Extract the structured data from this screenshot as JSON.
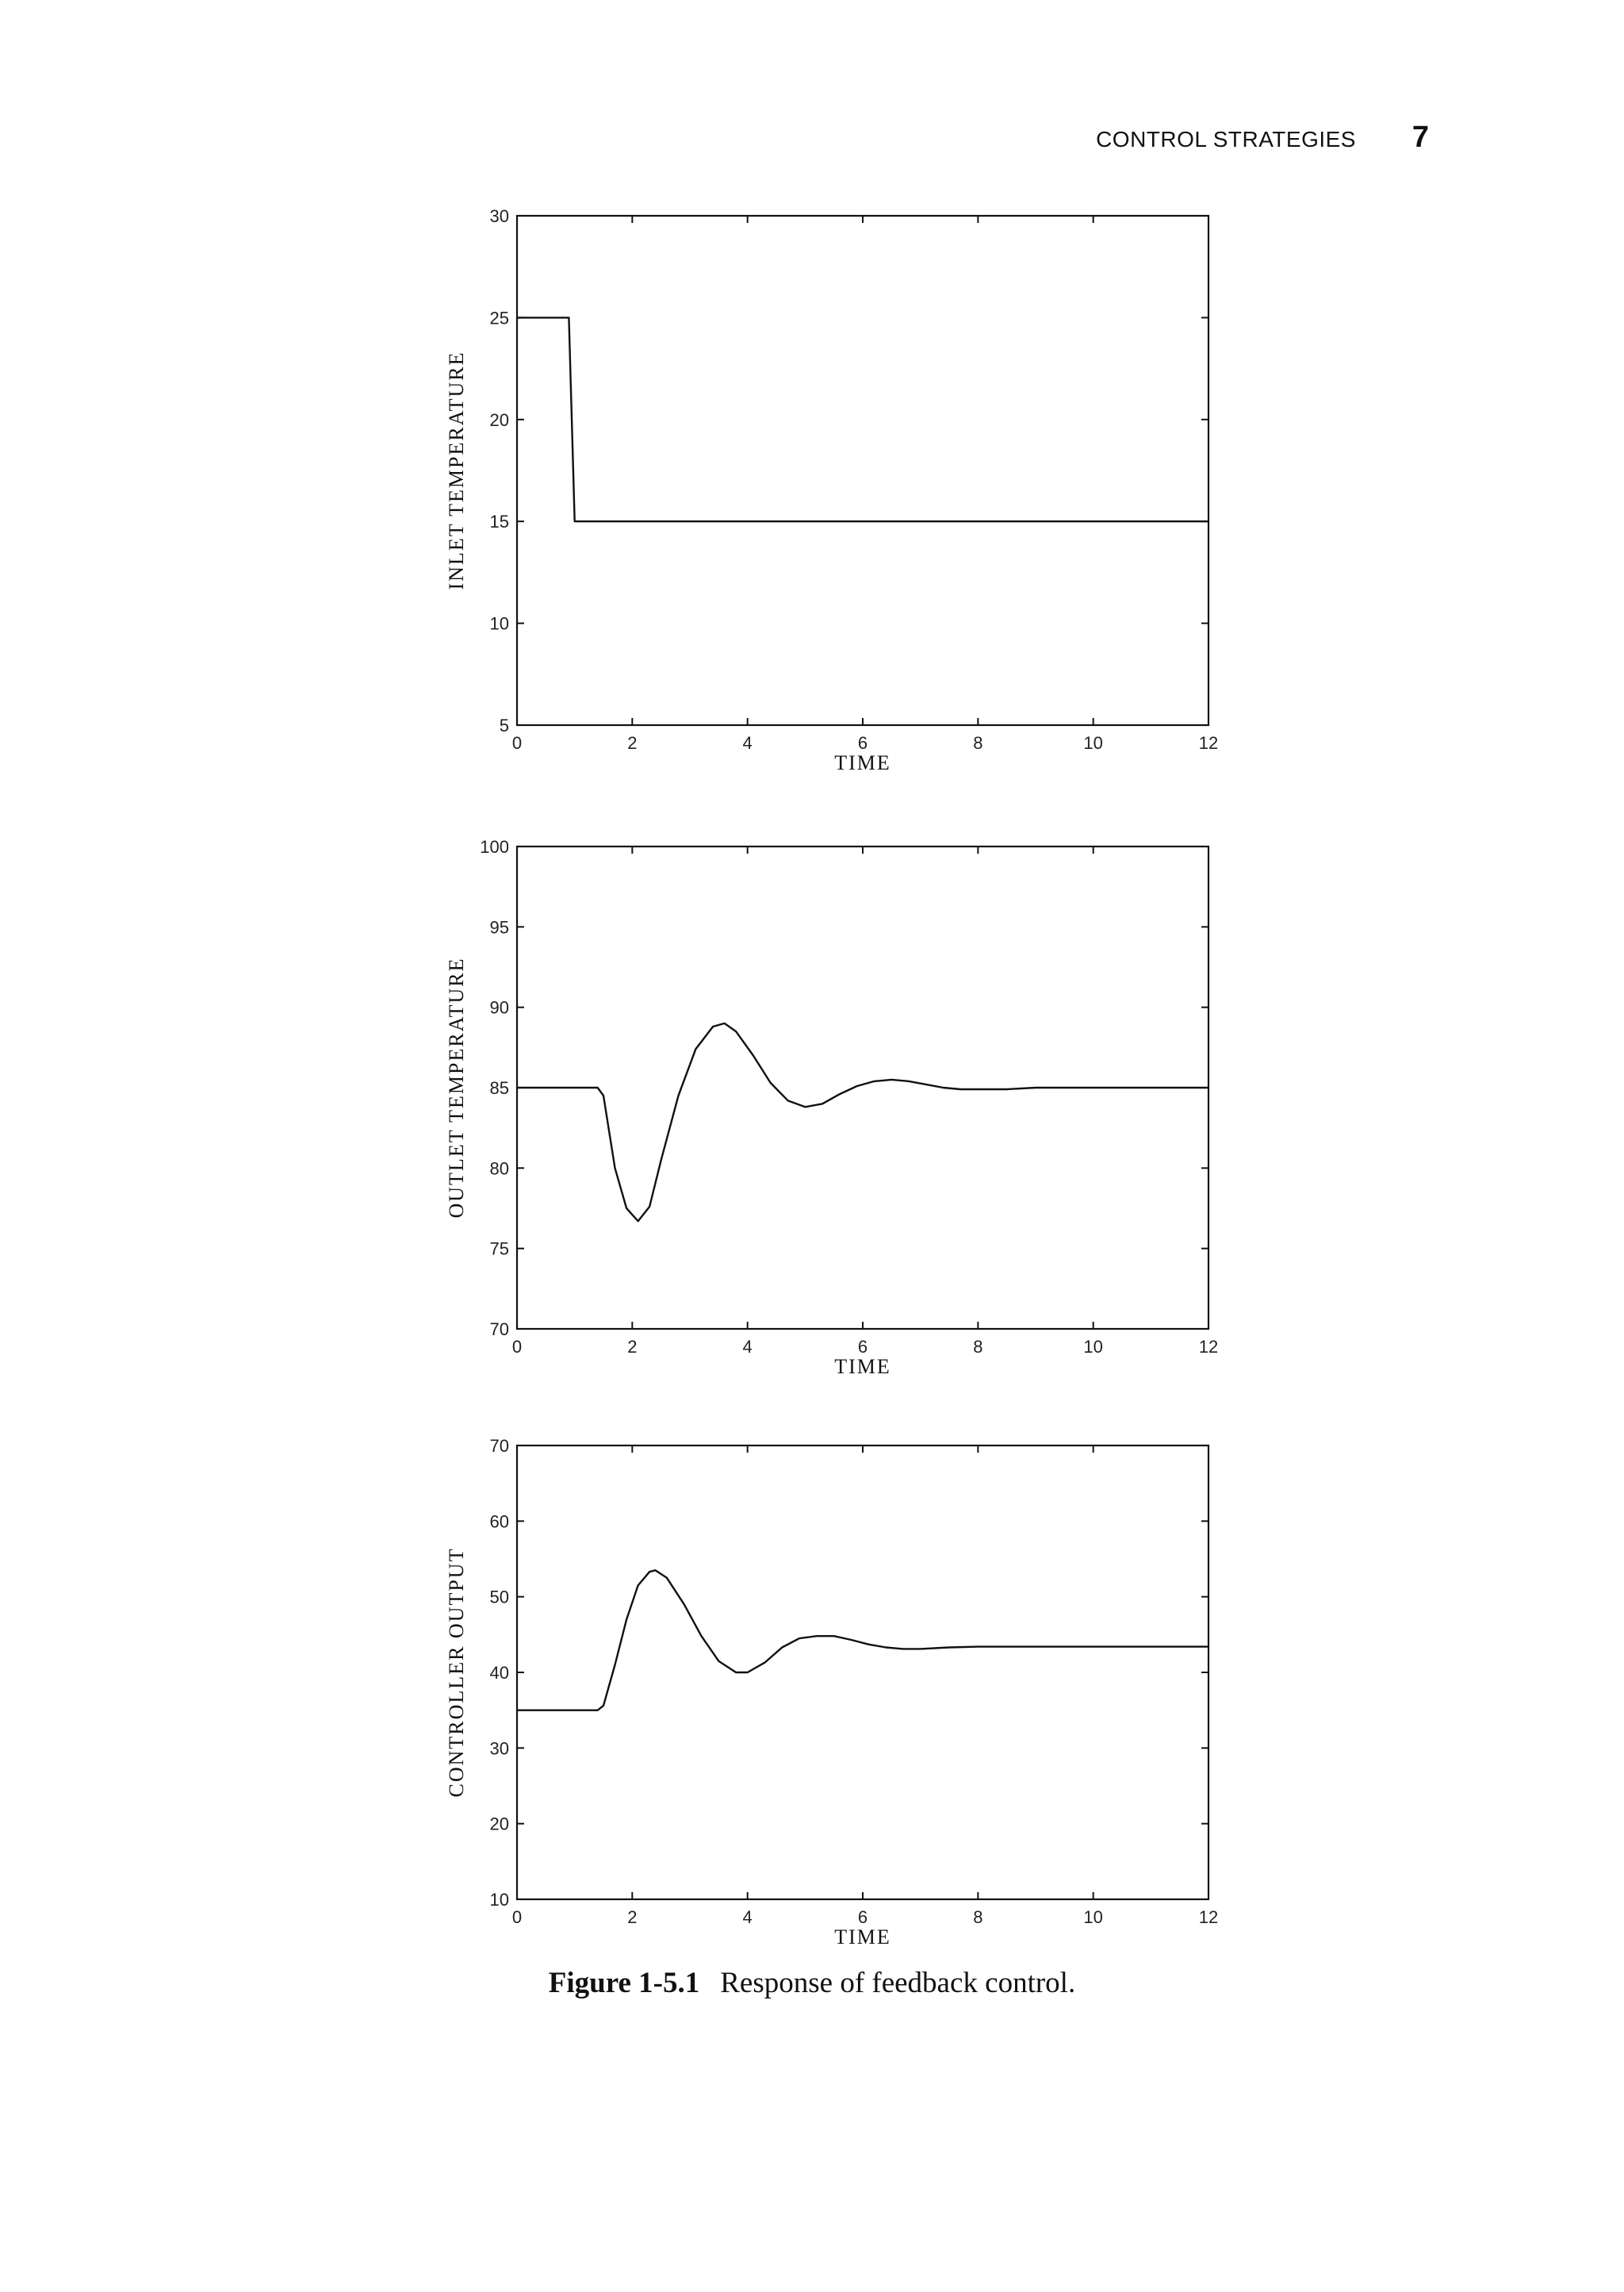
{
  "header": {
    "section_title": "CONTROL STRATEGIES",
    "page_number": "7"
  },
  "caption": {
    "label": "Figure 1-5.1",
    "text": "Response of feedback control."
  },
  "chart_data": [
    {
      "type": "line",
      "title": "",
      "xlabel": "TIME",
      "ylabel": "INLET TEMPERATURE",
      "xlim": [
        0,
        12
      ],
      "ylim": [
        5,
        30
      ],
      "xticks": [
        0,
        2,
        4,
        6,
        8,
        10,
        12
      ],
      "yticks": [
        5,
        10,
        15,
        20,
        25,
        30
      ],
      "grid": false,
      "series": [
        {
          "color": "#111111",
          "x": [
            0,
            0.9,
            1.0,
            12
          ],
          "y": [
            25,
            25,
            15,
            15
          ]
        }
      ]
    },
    {
      "type": "line",
      "title": "",
      "xlabel": "TIME",
      "ylabel": "OUTLET TEMPERATURE",
      "xlim": [
        0,
        12
      ],
      "ylim": [
        70,
        100
      ],
      "xticks": [
        0,
        2,
        4,
        6,
        8,
        10,
        12
      ],
      "yticks": [
        70,
        75,
        80,
        85,
        90,
        95,
        100
      ],
      "grid": false,
      "series": [
        {
          "color": "#111111",
          "x": [
            0,
            1.4,
            1.5,
            1.7,
            1.9,
            2.1,
            2.3,
            2.5,
            2.8,
            3.1,
            3.4,
            3.6,
            3.8,
            4.1,
            4.4,
            4.7,
            5.0,
            5.3,
            5.6,
            5.9,
            6.2,
            6.5,
            6.8,
            7.1,
            7.4,
            7.7,
            8.0,
            8.5,
            9.0,
            12
          ],
          "y": [
            85,
            85,
            84.5,
            80.0,
            77.5,
            76.7,
            77.6,
            80.5,
            84.5,
            87.4,
            88.8,
            89.0,
            88.5,
            87.0,
            85.3,
            84.2,
            83.8,
            84.0,
            84.6,
            85.1,
            85.4,
            85.5,
            85.4,
            85.2,
            85.0,
            84.9,
            84.9,
            84.9,
            85.0,
            85.0
          ]
        }
      ]
    },
    {
      "type": "line",
      "title": "",
      "xlabel": "TIME",
      "ylabel": "CONTROLLER OUTPUT",
      "xlim": [
        0,
        12
      ],
      "ylim": [
        10,
        70
      ],
      "xticks": [
        0,
        2,
        4,
        6,
        8,
        10,
        12
      ],
      "yticks": [
        10,
        20,
        30,
        40,
        50,
        60,
        70
      ],
      "grid": false,
      "series": [
        {
          "color": "#111111",
          "x": [
            0,
            1.4,
            1.5,
            1.7,
            1.9,
            2.1,
            2.3,
            2.4,
            2.6,
            2.9,
            3.2,
            3.5,
            3.8,
            4.0,
            4.3,
            4.6,
            4.9,
            5.2,
            5.5,
            5.8,
            6.1,
            6.4,
            6.7,
            7.0,
            7.5,
            8.0,
            12
          ],
          "y": [
            35,
            35,
            35.6,
            41.0,
            47.0,
            51.5,
            53.3,
            53.5,
            52.5,
            49.0,
            44.8,
            41.5,
            40.0,
            40.0,
            41.3,
            43.3,
            44.5,
            44.8,
            44.8,
            44.3,
            43.7,
            43.3,
            43.1,
            43.1,
            43.3,
            43.4,
            43.4
          ]
        }
      ]
    }
  ]
}
